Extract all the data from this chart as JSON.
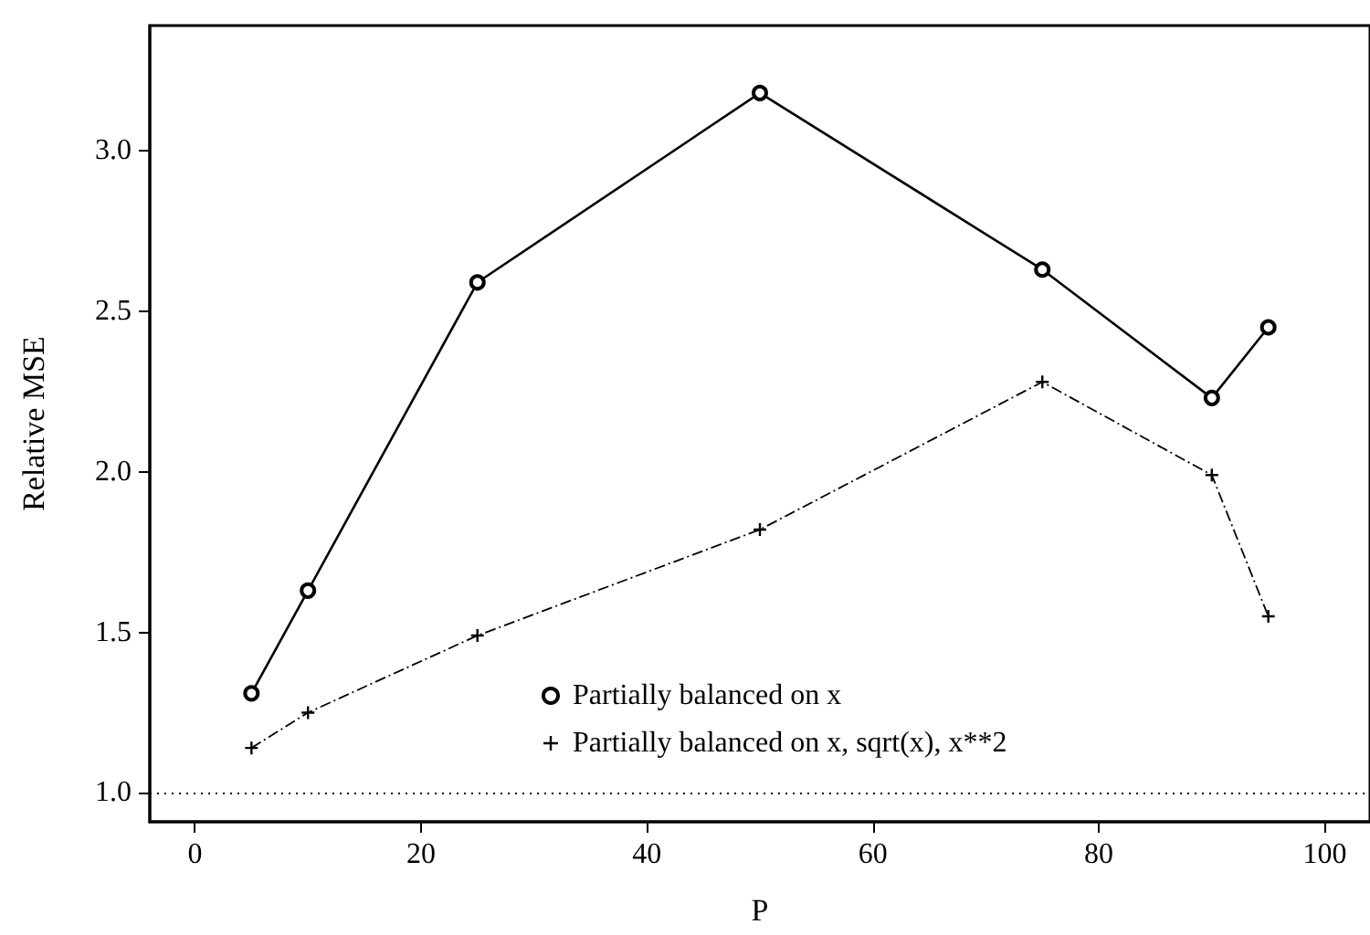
{
  "chart_data": {
    "type": "line",
    "xlabel": "P",
    "ylabel": "Relative MSE",
    "x": [
      5,
      10,
      25,
      50,
      75,
      90,
      95
    ],
    "series": [
      {
        "name": "Partially balanced on x",
        "color": "#000000",
        "marker": "circle",
        "line_style": "solid",
        "values": [
          1.31,
          1.63,
          2.59,
          3.18,
          2.63,
          2.23,
          2.45
        ]
      },
      {
        "name": "Partially balanced on x, sqrt(x), x**2",
        "color": "#000000",
        "marker": "cross",
        "line_style": "dashed",
        "values": [
          1.14,
          1.25,
          1.49,
          1.82,
          2.28,
          1.99,
          1.55
        ]
      }
    ],
    "xlim": [
      -4,
      104
    ],
    "xticks": [
      0,
      20,
      40,
      60,
      80,
      100
    ],
    "ylim": [
      0.91,
      3.39
    ],
    "yticks": [
      {
        "value": 1,
        "label": "1.0"
      },
      {
        "value": 1.5,
        "label": "1.5"
      },
      {
        "value": 2,
        "label": "2.0"
      },
      {
        "value": 2.5,
        "label": "2.5"
      },
      {
        "value": 3,
        "label": "3.0"
      }
    ],
    "ref_lines": [
      {
        "axis": "y",
        "value": 1,
        "color": "#000000",
        "line_style": "dotted"
      }
    ],
    "grid": false,
    "legend": "bottom"
  }
}
